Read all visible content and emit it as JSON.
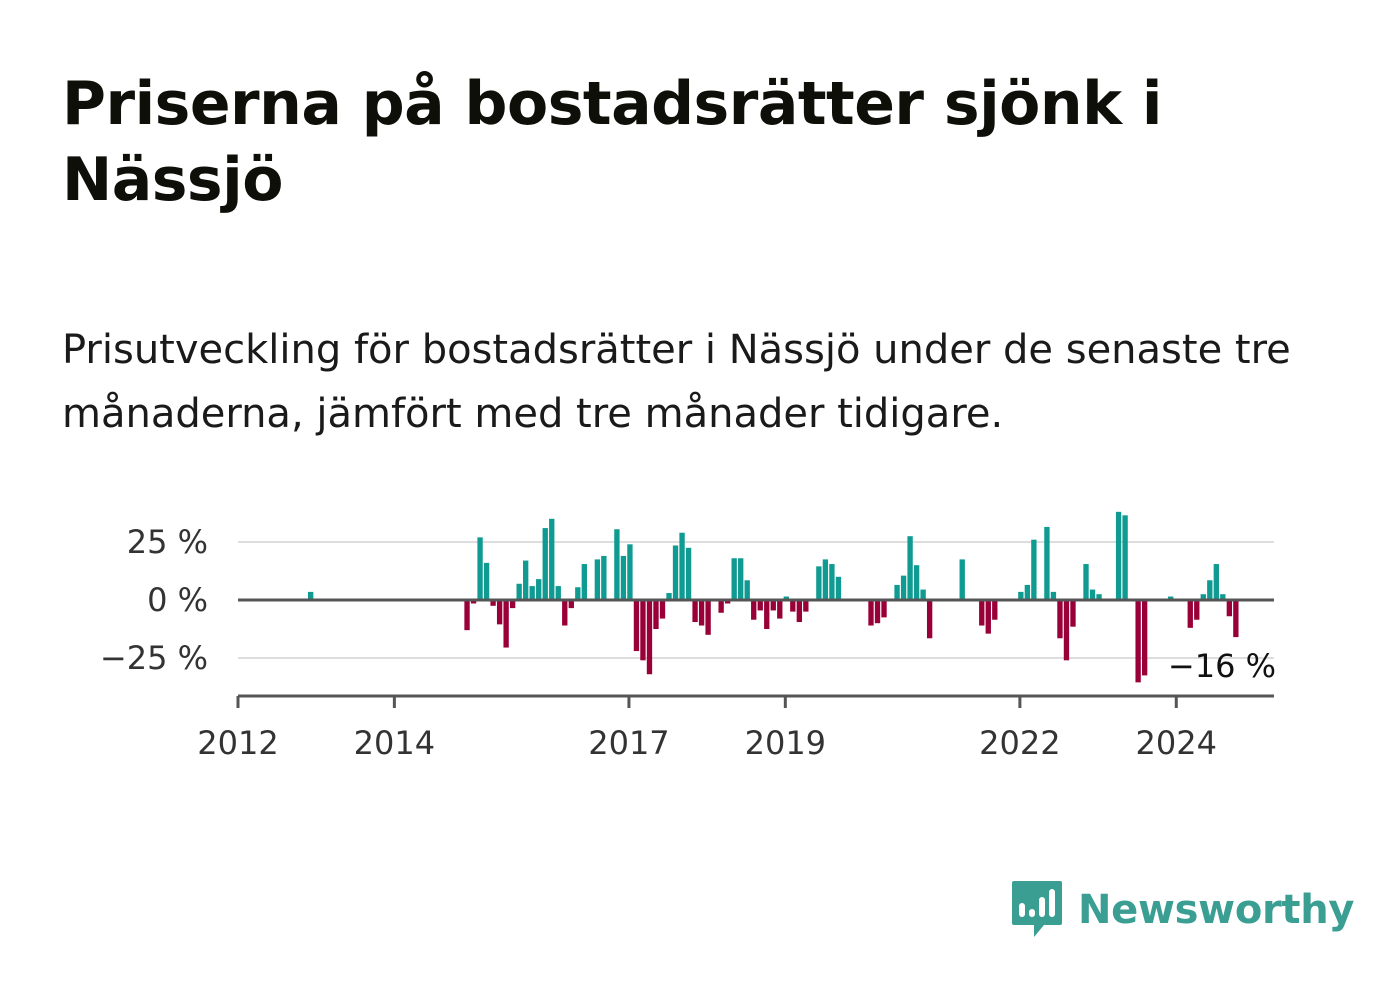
{
  "title": "Priserna på bostadsrätter sjönk i Nässjö",
  "subtitle": "Prisutveckling för bostadsrätter i Nässjö under de senaste tre månaderna, jämfört med tre månader tidigare.",
  "brand": {
    "name": "Newsworthy",
    "icon": "newsworthy-logo-icon",
    "color": "#3b9e93"
  },
  "colors": {
    "positive": "#0f9b91",
    "negative": "#990038",
    "grid": "#dddddd",
    "axis": "#555555"
  },
  "chart_data": {
    "type": "bar",
    "x_unit": "year",
    "x_start": 2012.0,
    "x_step": 0.08333,
    "ylim": [
      -35,
      40
    ],
    "y_ticks": [
      {
        "value": 25,
        "label": "25 %"
      },
      {
        "value": 0,
        "label": "0 %"
      },
      {
        "value": -25,
        "label": "−25 %"
      }
    ],
    "x_ticks": [
      {
        "value": 2012,
        "label": "2012"
      },
      {
        "value": 2014,
        "label": "2014"
      },
      {
        "value": 2017,
        "label": "2017"
      },
      {
        "value": 2019,
        "label": "2019"
      },
      {
        "value": 2022,
        "label": "2022"
      },
      {
        "value": 2024,
        "label": "2024"
      }
    ],
    "grid": true,
    "last_value_label": "−16 %",
    "values": [
      null,
      null,
      null,
      null,
      null,
      null,
      null,
      null,
      null,
      null,
      null,
      3.5,
      null,
      null,
      null,
      null,
      null,
      null,
      null,
      null,
      null,
      null,
      null,
      null,
      null,
      null,
      null,
      null,
      null,
      null,
      null,
      null,
      null,
      null,
      null,
      -13,
      -1.5,
      27,
      16,
      -2.5,
      -10.5,
      -20.5,
      -3.5,
      7,
      17,
      6,
      9,
      31,
      35,
      6,
      -11,
      -3.5,
      5.5,
      15.5,
      0,
      17.5,
      19,
      0,
      30.5,
      19,
      24,
      -22,
      -26,
      -32,
      -12.5,
      -8,
      3,
      23.5,
      29,
      22.5,
      -9.5,
      -11,
      -15,
      -0.5,
      -5.5,
      -1.5,
      18,
      18,
      8.5,
      -8.5,
      -4.5,
      -12.5,
      -4.5,
      -8,
      1.5,
      -5,
      -9.5,
      -5,
      null,
      14.5,
      17.5,
      15.5,
      10,
      null,
      null,
      null,
      null,
      -11,
      -10,
      -7.5,
      null,
      6.5,
      10.5,
      27.5,
      15,
      4.5,
      -16.5,
      null,
      null,
      null,
      null,
      17.5,
      null,
      null,
      -11,
      -14.5,
      -8.5,
      null,
      null,
      null,
      3.5,
      6.5,
      26,
      0,
      31.5,
      3.5,
      -16.5,
      -26,
      -11.5,
      null,
      15.5,
      4.5,
      2.5,
      null,
      null,
      38,
      36.5,
      null,
      -35.5,
      -32.5,
      null,
      null,
      null,
      1.5,
      null,
      null,
      -12,
      -8.5,
      2.5,
      8.5,
      15.5,
      2.5,
      -7,
      -16
    ]
  }
}
